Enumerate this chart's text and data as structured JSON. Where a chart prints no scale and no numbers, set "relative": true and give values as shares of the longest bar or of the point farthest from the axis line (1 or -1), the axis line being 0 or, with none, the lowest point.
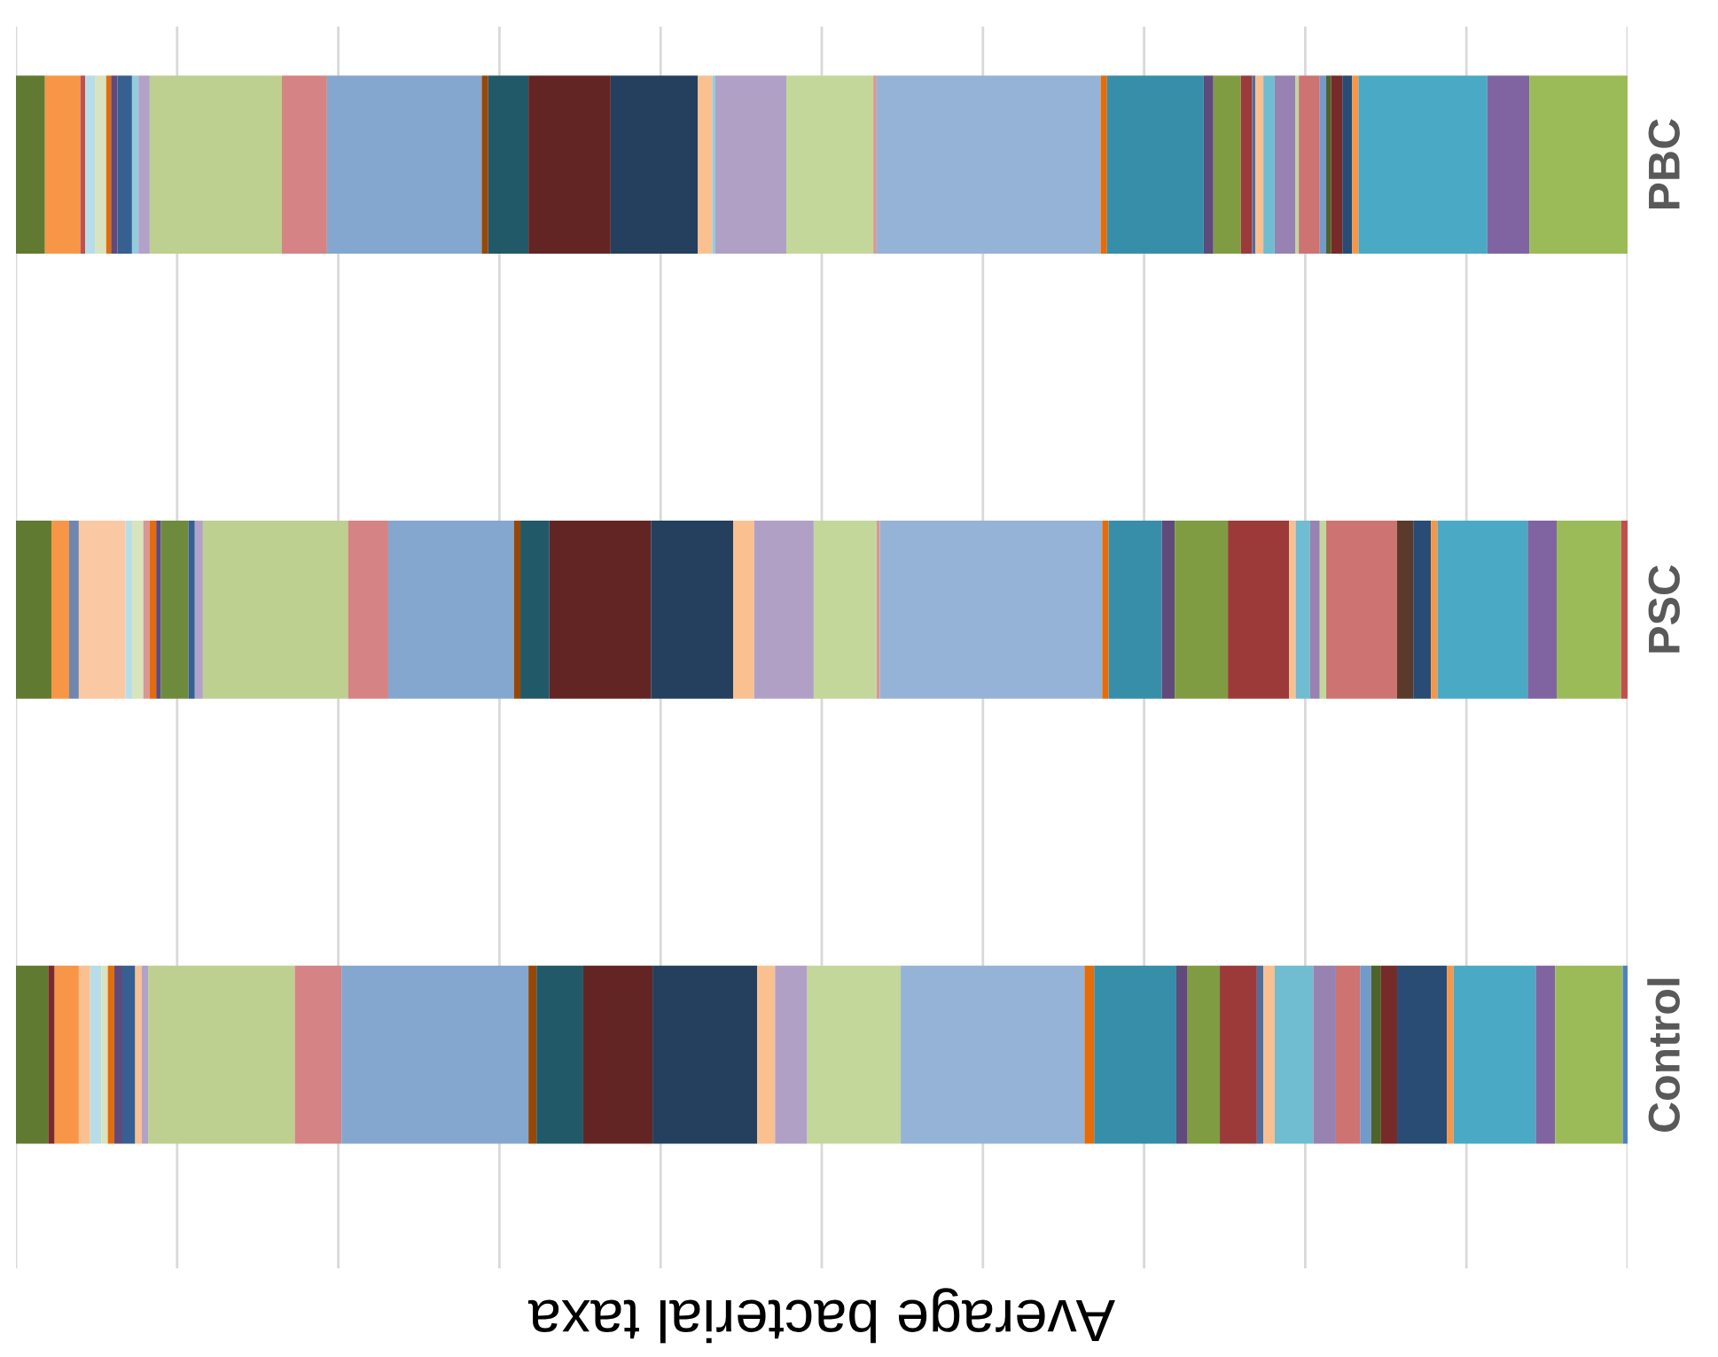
{
  "chart_data": {
    "type": "bar",
    "orientation": "horizontal",
    "stacked": true,
    "relative": true,
    "xlabel": "Average bacterial taxa",
    "categories": [
      "PBC",
      "PSC",
      "Control"
    ],
    "grid": "x",
    "legend": false,
    "series": [
      {
        "values": [
          0.018,
          0.022,
          0.02
        ],
        "colors": [
          "#617a31",
          "#617a31",
          "#617a31"
        ]
      },
      {
        "values": [
          0.022,
          0.011,
          0.004
        ],
        "colors": [
          "#f79646",
          "#f79646",
          "#7a2a2a"
        ]
      },
      {
        "values": [
          0.003,
          0.006,
          0.015
        ],
        "colors": [
          "#c0504d",
          "#6f87b0",
          "#f79646"
        ]
      },
      {
        "values": [
          0.006,
          0.029,
          0.007
        ],
        "colors": [
          "#b7dde8",
          "#fac9a4",
          "#fac090"
        ]
      },
      {
        "values": [
          0.007,
          0.004,
          0.007
        ],
        "colors": [
          "#d7e4bd",
          "#b7dde8",
          "#b7dde8"
        ]
      },
      {
        "values": [
          0.003,
          0.007,
          0.004
        ],
        "colors": [
          "#e46c0a",
          "#d7e4bd",
          "#d7e4bd"
        ]
      },
      {
        "values": [
          0.004,
          0.004,
          0.004
        ],
        "colors": [
          "#604a7b",
          "#d99694",
          "#e46c0a"
        ]
      },
      {
        "values": [
          0.009,
          0.004,
          0.005
        ],
        "colors": [
          "#366092",
          "#e46c0a",
          "#604a7b"
        ]
      },
      {
        "values": [
          0.004,
          0.003,
          0.008
        ],
        "colors": [
          "#93cddd",
          "#604a7b",
          "#366092"
        ]
      },
      {
        "values": [
          0.007,
          0.017,
          0.004
        ],
        "colors": [
          "#b3a2c7",
          "#6e8b3d",
          "#fac090"
        ]
      },
      {
        "values": [
          0.082,
          0.004,
          0.004
        ],
        "colors": [
          "#bdd08f",
          "#366092",
          "#b3a2c7"
        ]
      },
      {
        "values": [
          0.028,
          0.005,
          0.091
        ],
        "colors": [
          "#d58384",
          "#b3a2c7",
          "#bdd08f"
        ]
      },
      {
        "values": [
          0.096,
          0.09,
          0.029
        ],
        "colors": [
          "#84a7cf",
          "#bdd08f",
          "#d58384"
        ]
      },
      {
        "values": [
          0.004,
          0.025,
          0.116
        ],
        "colors": [
          "#974806",
          "#d58384",
          "#84a7cf"
        ]
      },
      {
        "values": [
          0.025,
          0.078,
          0.005
        ],
        "colors": [
          "#215968",
          "#84a7cf",
          "#974806"
        ]
      },
      {
        "values": [
          0.051,
          0.004,
          0.029
        ],
        "colors": [
          "#632523",
          "#974806",
          "#215968"
        ]
      },
      {
        "values": [
          0.054,
          0.018,
          0.043
        ],
        "colors": [
          "#253f5f",
          "#215968",
          "#632523"
        ]
      },
      {
        "values": [
          0.009,
          0.063,
          0.065
        ],
        "colors": [
          "#fac090",
          "#632523",
          "#253f5f"
        ]
      },
      {
        "values": [
          0.002,
          0.051,
          0.011
        ],
        "colors": [
          "#93cddd",
          "#253f5f",
          "#fac090"
        ]
      },
      {
        "values": [
          0.044,
          0.013,
          0.02
        ],
        "colors": [
          "#b1a0c6",
          "#fac090",
          "#b1a0c6"
        ]
      },
      {
        "values": [
          0.054,
          0.037,
          0.058
        ],
        "colors": [
          "#c4d79b",
          "#b1a0c6",
          "#c4d79b"
        ]
      },
      {
        "values": [
          0.002,
          0.039,
          0.114
        ],
        "colors": [
          "#d99694",
          "#c4d79b",
          "#95b3d7"
        ]
      },
      {
        "values": [
          0.139,
          0.002,
          0.006
        ],
        "colors": [
          "#95b3d7",
          "#d99694",
          "#e46c0a"
        ]
      },
      {
        "values": [
          0.004,
          0.138,
          0.051
        ],
        "colors": [
          "#e46c0a",
          "#95b3d7",
          "#378ea8"
        ]
      },
      {
        "values": [
          0.06,
          0.004,
          0.007
        ],
        "colors": [
          "#378ea8",
          "#e46c0a",
          "#604a7b"
        ]
      },
      {
        "values": [
          0.006,
          0.033,
          0.02
        ],
        "colors": [
          "#604a7b",
          "#378ea8",
          "#7f9c42"
        ]
      },
      {
        "values": [
          0.017,
          0.008,
          0.023
        ],
        "colors": [
          "#7f9c42",
          "#604a7b",
          "#9c3a3a"
        ]
      },
      {
        "values": [
          0.007,
          0.033,
          0.004
        ],
        "colors": [
          "#9c3a3a",
          "#7f9c42",
          "#4f6fa0"
        ]
      },
      {
        "values": [
          0.002,
          0.038,
          0.007
        ],
        "colors": [
          "#4f6fa0",
          "#9c3a3a",
          "#fabf8f"
        ]
      },
      {
        "values": [
          0.005,
          0.004,
          0.024
        ],
        "colors": [
          "#fabf8f",
          "#fabf8f",
          "#70bcd0"
        ]
      },
      {
        "values": [
          0.007,
          0.009,
          0.014
        ],
        "colors": [
          "#70bcd0",
          "#70bcd0",
          "#9882b1"
        ]
      },
      {
        "values": [
          0.013,
          0.006,
          0.015
        ],
        "colors": [
          "#9882b1",
          "#9882b1",
          "#cd7372"
        ]
      },
      {
        "values": [
          0.002,
          0.004,
          0.007
        ],
        "colors": [
          "#c4d79b",
          "#c4d79b",
          "#729acb"
        ]
      },
      {
        "values": [
          0.013,
          0.044,
          0.006
        ],
        "colors": [
          "#cd7372",
          "#cd7372",
          "#4f6228"
        ]
      },
      {
        "values": [
          0.004,
          0.01,
          0.01
        ],
        "colors": [
          "#729acb",
          "#5a3a2a",
          "#772a2a"
        ]
      },
      {
        "values": [
          0.003,
          0.011,
          0.031
        ],
        "colors": [
          "#4f6228",
          "#284c73",
          "#284c73"
        ]
      },
      {
        "values": [
          0.007,
          0.004,
          0.004
        ],
        "colors": [
          "#772a2a",
          "#f79646",
          "#f79646"
        ]
      },
      {
        "values": [
          0.006,
          0.056,
          0.051
        ],
        "colors": [
          "#284c73",
          "#4aaac5",
          "#4aaac5"
        ]
      },
      {
        "values": [
          0.004,
          0.018,
          0.012
        ],
        "colors": [
          "#f79646",
          "#8064a2",
          "#8064a2"
        ]
      },
      {
        "values": [
          0.08,
          0.04,
          0.042
        ],
        "colors": [
          "#4aaac5",
          "#9bbb59",
          "#9bbb59"
        ]
      },
      {
        "values": [
          0.026,
          0.004,
          0.003
        ],
        "colors": [
          "#8064a2",
          "#c0504d",
          "#4f81bd"
        ]
      },
      {
        "values": [
          0.061,
          null,
          null
        ],
        "colors": [
          "#9bbb59",
          "#c0504d",
          "#4f81bd"
        ]
      }
    ]
  }
}
